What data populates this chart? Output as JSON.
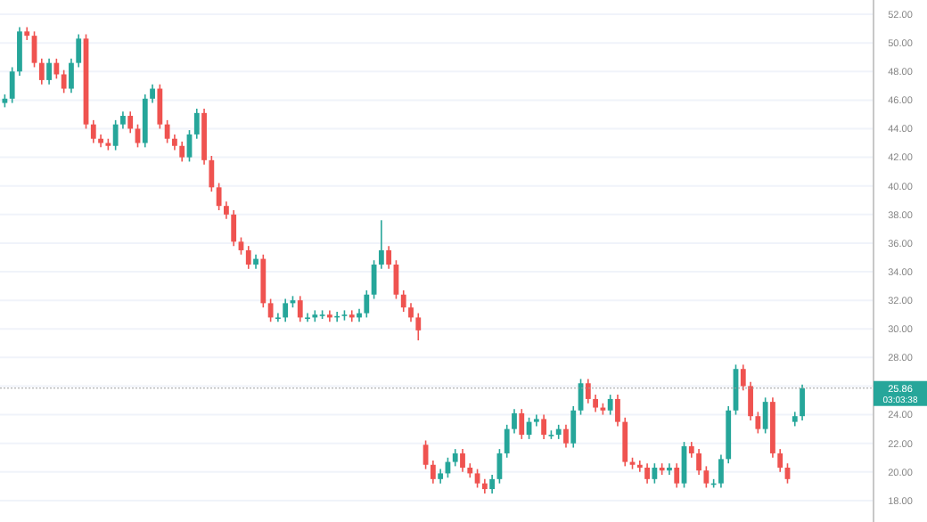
{
  "chart_data": {
    "type": "candlestick",
    "categories": [
      null,
      null,
      null,
      null,
      null,
      null,
      null,
      null,
      null,
      null,
      null,
      null,
      null,
      null,
      null,
      null,
      null,
      null,
      null,
      null,
      null,
      null,
      null,
      null,
      null,
      null,
      null,
      null,
      null,
      null,
      null,
      null,
      null,
      null,
      null,
      null,
      null,
      null,
      null,
      null,
      null,
      null,
      null,
      null,
      null,
      null,
      null,
      null,
      null,
      null,
      null,
      null,
      null,
      null,
      null,
      null,
      null,
      null,
      null,
      null,
      null,
      null,
      null,
      null,
      null,
      null,
      null,
      null,
      null,
      null,
      null,
      null,
      null,
      null,
      null,
      null,
      null,
      null,
      null,
      null,
      null,
      null,
      null,
      null,
      null,
      null,
      null,
      null,
      null,
      null,
      null,
      null,
      null,
      null,
      null,
      null,
      null,
      null,
      null,
      null,
      null,
      null,
      null,
      null,
      null,
      null,
      null,
      null,
      null,
      null,
      null,
      null,
      null,
      null,
      null,
      null,
      null,
      null
    ],
    "ohlc": [
      [
        45.8,
        46.4,
        45.5,
        46.1
      ],
      [
        46.1,
        48.3,
        45.8,
        48.0
      ],
      [
        48.0,
        51.1,
        47.7,
        50.8
      ],
      [
        50.8,
        51.1,
        50.2,
        50.5
      ],
      [
        50.5,
        50.8,
        48.3,
        48.6
      ],
      [
        48.6,
        48.9,
        47.1,
        47.4
      ],
      [
        47.4,
        48.9,
        47.1,
        48.6
      ],
      [
        48.6,
        48.9,
        47.5,
        47.8
      ],
      [
        47.8,
        48.1,
        46.5,
        46.8
      ],
      [
        46.8,
        48.9,
        46.5,
        48.6
      ],
      [
        48.6,
        50.6,
        48.3,
        50.3
      ],
      [
        50.3,
        50.6,
        44.0,
        44.3
      ],
      [
        44.3,
        44.6,
        43.0,
        43.3
      ],
      [
        43.3,
        43.6,
        42.7,
        43.0
      ],
      [
        43.0,
        43.3,
        42.5,
        42.8
      ],
      [
        42.8,
        44.6,
        42.5,
        44.3
      ],
      [
        44.3,
        45.2,
        44.0,
        44.9
      ],
      [
        44.9,
        45.2,
        43.7,
        44.0
      ],
      [
        44.0,
        44.3,
        42.7,
        43.0
      ],
      [
        43.0,
        46.4,
        42.7,
        46.1
      ],
      [
        46.1,
        47.1,
        45.8,
        46.8
      ],
      [
        46.8,
        47.1,
        44.0,
        44.3
      ],
      [
        44.3,
        44.6,
        43.0,
        43.3
      ],
      [
        43.3,
        43.6,
        42.5,
        42.8
      ],
      [
        42.8,
        43.1,
        41.7,
        42.0
      ],
      [
        42.0,
        43.9,
        41.7,
        43.6
      ],
      [
        43.6,
        45.4,
        43.3,
        45.1
      ],
      [
        45.1,
        45.4,
        41.5,
        41.8
      ],
      [
        41.8,
        42.1,
        39.6,
        39.9
      ],
      [
        39.9,
        40.2,
        38.3,
        38.6
      ],
      [
        38.6,
        38.9,
        37.7,
        38.0
      ],
      [
        38.0,
        38.3,
        35.8,
        36.1
      ],
      [
        36.1,
        36.4,
        35.2,
        35.5
      ],
      [
        35.5,
        35.8,
        34.2,
        34.5
      ],
      [
        34.5,
        35.2,
        34.2,
        34.9
      ],
      [
        34.9,
        35.2,
        31.5,
        31.8
      ],
      [
        31.8,
        32.1,
        30.5,
        30.8
      ],
      [
        30.8,
        31.1,
        30.5,
        30.8
      ],
      [
        30.8,
        32.1,
        30.5,
        31.8
      ],
      [
        31.8,
        32.3,
        31.5,
        32.0
      ],
      [
        32.0,
        32.3,
        30.5,
        30.8
      ],
      [
        30.8,
        31.1,
        30.5,
        30.8
      ],
      [
        30.8,
        31.3,
        30.5,
        31.0
      ],
      [
        31.0,
        31.3,
        30.7,
        31.0
      ],
      [
        31.0,
        31.3,
        30.5,
        30.8
      ],
      [
        30.8,
        31.2,
        30.5,
        30.9
      ],
      [
        30.9,
        31.3,
        30.6,
        31.0
      ],
      [
        31.0,
        31.3,
        30.5,
        30.8
      ],
      [
        30.8,
        31.4,
        30.5,
        31.1
      ],
      [
        31.1,
        32.7,
        30.8,
        32.4
      ],
      [
        32.4,
        34.8,
        32.1,
        34.5
      ],
      [
        34.5,
        37.6,
        34.2,
        35.5
      ],
      [
        35.5,
        35.8,
        34.2,
        34.5
      ],
      [
        34.5,
        34.8,
        32.1,
        32.4
      ],
      [
        32.4,
        32.7,
        31.2,
        31.5
      ],
      [
        31.5,
        31.8,
        30.5,
        30.8
      ],
      [
        30.8,
        31.1,
        29.2,
        29.9
      ],
      [
        21.9,
        22.2,
        20.2,
        20.5
      ],
      [
        20.5,
        20.8,
        19.2,
        19.5
      ],
      [
        19.5,
        20.2,
        19.2,
        19.9
      ],
      [
        19.9,
        21.0,
        19.6,
        20.7
      ],
      [
        20.7,
        21.6,
        20.4,
        21.3
      ],
      [
        21.3,
        21.6,
        20.0,
        20.3
      ],
      [
        20.3,
        20.6,
        19.6,
        19.9
      ],
      [
        19.9,
        20.2,
        18.9,
        19.2
      ],
      [
        19.2,
        19.5,
        18.5,
        18.8
      ],
      [
        18.8,
        19.8,
        18.5,
        19.5
      ],
      [
        19.5,
        21.6,
        19.2,
        21.3
      ],
      [
        21.3,
        23.3,
        21.0,
        23.0
      ],
      [
        23.0,
        24.4,
        22.7,
        24.1
      ],
      [
        24.1,
        24.4,
        22.3,
        22.6
      ],
      [
        22.6,
        23.8,
        22.3,
        23.5
      ],
      [
        23.5,
        24.0,
        23.2,
        23.7
      ],
      [
        23.7,
        24.0,
        22.3,
        22.6
      ],
      [
        22.6,
        22.9,
        22.3,
        22.6
      ],
      [
        22.6,
        23.3,
        22.3,
        23.0
      ],
      [
        23.0,
        23.3,
        21.7,
        22.0
      ],
      [
        22.0,
        24.6,
        21.7,
        24.3
      ],
      [
        24.3,
        26.5,
        24.0,
        26.2
      ],
      [
        26.2,
        26.5,
        24.8,
        25.1
      ],
      [
        25.1,
        25.4,
        24.2,
        24.5
      ],
      [
        24.5,
        24.8,
        24.0,
        24.3
      ],
      [
        24.3,
        25.4,
        24.0,
        25.1
      ],
      [
        25.1,
        25.4,
        23.2,
        23.5
      ],
      [
        23.5,
        23.8,
        20.4,
        20.7
      ],
      [
        20.7,
        21.0,
        20.2,
        20.5
      ],
      [
        20.5,
        20.8,
        20.0,
        20.3
      ],
      [
        20.3,
        20.6,
        19.2,
        19.5
      ],
      [
        19.5,
        20.6,
        19.2,
        20.3
      ],
      [
        20.3,
        20.6,
        19.8,
        20.1
      ],
      [
        20.1,
        20.6,
        19.8,
        20.3
      ],
      [
        20.3,
        20.6,
        18.9,
        19.2
      ],
      [
        19.2,
        22.1,
        18.9,
        21.8
      ],
      [
        21.8,
        22.1,
        21.0,
        21.3
      ],
      [
        21.3,
        21.6,
        19.8,
        20.1
      ],
      [
        20.1,
        20.4,
        18.9,
        19.2
      ],
      [
        19.2,
        19.5,
        18.9,
        19.2
      ],
      [
        19.2,
        21.2,
        18.9,
        20.9
      ],
      [
        20.9,
        24.6,
        20.6,
        24.3
      ],
      [
        24.3,
        27.5,
        24.0,
        27.2
      ],
      [
        27.2,
        27.5,
        25.7,
        26.0
      ],
      [
        26.0,
        26.3,
        23.6,
        23.9
      ],
      [
        23.9,
        24.2,
        22.7,
        23.0
      ],
      [
        23.0,
        25.2,
        22.7,
        24.9
      ],
      [
        24.9,
        25.2,
        21.0,
        21.3
      ],
      [
        21.3,
        21.6,
        20.0,
        20.3
      ],
      [
        20.3,
        20.6,
        19.2,
        19.5
      ],
      [
        23.5,
        24.2,
        23.2,
        23.9
      ],
      [
        23.9,
        26.1,
        23.6,
        25.86
      ],
      null,
      null,
      null,
      null,
      null,
      null,
      null,
      null,
      null
    ],
    "colors": [
      "#26a69a",
      "#26a69a",
      "#26a69a",
      "#ef5350",
      "#ef5350",
      "#ef5350",
      "#26a69a",
      "#ef5350",
      "#ef5350",
      "#26a69a",
      "#26a69a",
      "#ef5350",
      "#ef5350",
      "#ef5350",
      "#ef5350",
      "#26a69a",
      "#26a69a",
      "#ef5350",
      "#ef5350",
      "#26a69a",
      "#26a69a",
      "#ef5350",
      "#ef5350",
      "#ef5350",
      "#ef5350",
      "#26a69a",
      "#26a69a",
      "#ef5350",
      "#ef5350",
      "#ef5350",
      "#ef5350",
      "#ef5350",
      "#ef5350",
      "#ef5350",
      "#26a69a",
      "#ef5350",
      "#ef5350",
      "#26a69a",
      "#26a69a",
      "#26a69a",
      "#ef5350",
      "#26a69a",
      "#26a69a",
      "#26a69a",
      "#ef5350",
      "#26a69a",
      "#26a69a",
      "#ef5350",
      "#26a69a",
      "#26a69a",
      "#26a69a",
      "#26a69a",
      "#ef5350",
      "#ef5350",
      "#ef5350",
      "#ef5350",
      "#ef5350",
      "#ef5350",
      "#ef5350",
      "#26a69a",
      "#26a69a",
      "#26a69a",
      "#ef5350",
      "#ef5350",
      "#ef5350",
      "#ef5350",
      "#26a69a",
      "#26a69a",
      "#26a69a",
      "#26a69a",
      "#ef5350",
      "#26a69a",
      "#26a69a",
      "#ef5350",
      "#26a69a",
      "#26a69a",
      "#ef5350",
      "#26a69a",
      "#26a69a",
      "#ef5350",
      "#ef5350",
      "#ef5350",
      "#26a69a",
      "#ef5350",
      "#ef5350",
      "#ef5350",
      "#ef5350",
      "#ef5350",
      "#26a69a",
      "#ef5350",
      "#26a69a",
      "#ef5350",
      "#26a69a",
      "#ef5350",
      "#ef5350",
      "#ef5350",
      "#26a69a",
      "#26a69a",
      "#26a69a",
      "#26a69a",
      "#ef5350",
      "#ef5350",
      "#ef5350",
      "#26a69a",
      "#ef5350",
      "#ef5350",
      "#ef5350",
      "#26a69a",
      "#26a69a",
      null,
      null,
      null,
      null,
      null,
      null,
      null,
      null,
      null
    ],
    "ylim": [
      16.5,
      53
    ],
    "yticks": [
      {
        "value": 18,
        "label": "18.00"
      },
      {
        "value": 20,
        "label": "20.00"
      },
      {
        "value": 22,
        "label": "22.00"
      },
      {
        "value": 24,
        "label": "24.00"
      },
      {
        "value": 26,
        "label": null
      },
      {
        "value": 28,
        "label": "28.00"
      },
      {
        "value": 30,
        "label": "30.00"
      },
      {
        "value": 32,
        "label": "32.00"
      },
      {
        "value": 34,
        "label": "34.00"
      },
      {
        "value": 36,
        "label": "36.00"
      },
      {
        "value": 38,
        "label": "38.00"
      },
      {
        "value": 40,
        "label": "40.00"
      },
      {
        "value": 42,
        "label": "42.00"
      },
      {
        "value": 44,
        "label": "44.00"
      },
      {
        "value": 46,
        "label": "46.00"
      },
      {
        "value": 48,
        "label": "48.00"
      },
      {
        "value": 50,
        "label": "50.00"
      },
      {
        "value": 52,
        "label": "52.00"
      }
    ],
    "grid": "y",
    "ref_lines": [
      {
        "axis": "y",
        "value": 25.86,
        "label": "25.86",
        "color": "#9e9e9e"
      }
    ],
    "annotations": [
      "03:03:38"
    ]
  }
}
